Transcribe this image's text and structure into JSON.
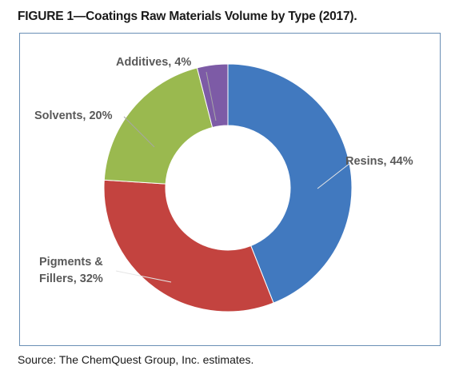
{
  "figure_title": "FIGURE 1—Coatings Raw Materials Volume by Type (2017).",
  "source": "Source: The ChemQuest Group, Inc. estimates.",
  "chart_data": {
    "type": "pie",
    "donut": true,
    "title": "",
    "legend": "none",
    "slices": [
      {
        "category": "Resins",
        "value": 44,
        "color": "#4179bf",
        "label_lines": [
          "Resins, 44%"
        ]
      },
      {
        "category": "Pigments & Fillers",
        "value": 32,
        "color": "#c3433f",
        "label_lines": [
          "Pigments &",
          "Fillers, 32%"
        ]
      },
      {
        "category": "Solvents",
        "value": 20,
        "color": "#9ab94f",
        "label_lines": [
          "Solvents, 20%"
        ]
      },
      {
        "category": "Additives",
        "value": 4,
        "color": "#7d5ba6",
        "label_lines": [
          "Additives, 4%"
        ]
      }
    ]
  }
}
